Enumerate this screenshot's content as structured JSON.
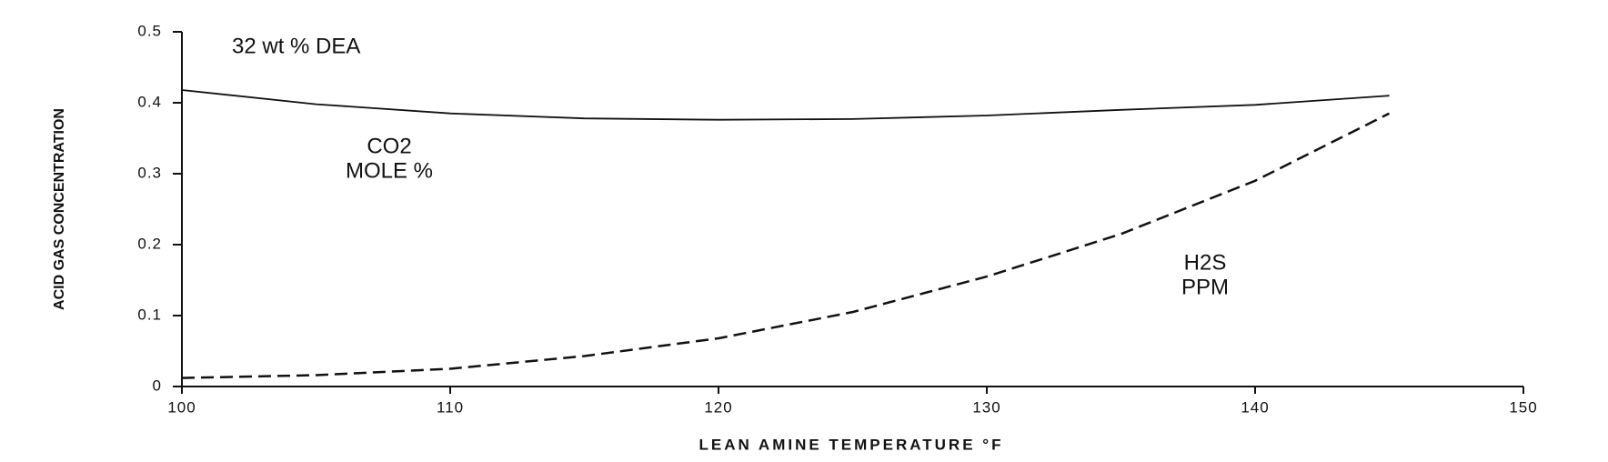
{
  "chart_data": {
    "type": "line",
    "x_label": "LEAN AMINE TEMPERATURE °F",
    "y_label": "ACID GAS CONCENTRATION",
    "annotations": [
      "32 wt % DEA"
    ],
    "x": [
      100,
      105,
      110,
      115,
      120,
      125,
      130,
      135,
      140,
      145
    ],
    "series": [
      {
        "label_lines": [
          "CO2",
          "MOLE %"
        ],
        "color": "#111111",
        "dash": "solid",
        "values": [
          0.418,
          0.398,
          0.385,
          0.378,
          0.376,
          0.377,
          0.382,
          0.39,
          0.397,
          0.41
        ]
      },
      {
        "label_lines": [
          "H2S",
          "PPM"
        ],
        "color": "#111111",
        "dash": "dashed",
        "values": [
          0.012,
          0.016,
          0.025,
          0.043,
          0.068,
          0.105,
          0.155,
          0.215,
          0.29,
          0.385
        ]
      }
    ],
    "xlim": [
      100,
      150
    ],
    "xticks": [
      100,
      110,
      120,
      130,
      140,
      150
    ],
    "ylim": [
      0,
      0.5
    ],
    "yticks": [
      0,
      0.1,
      0.2,
      0.3,
      0.4,
      0.5
    ],
    "grid": false
  }
}
